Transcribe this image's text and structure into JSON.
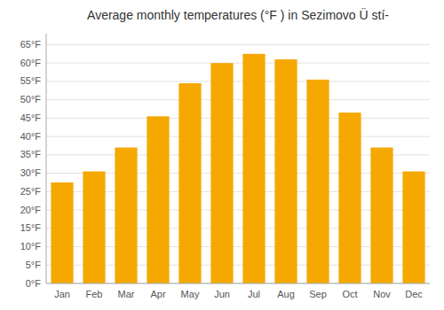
{
  "chart_data": {
    "type": "bar",
    "title": "Average monthly temperatures (°F ) in Sezimovo Ü stí-",
    "categories": [
      "Jan",
      "Feb",
      "Mar",
      "Apr",
      "May",
      "Jun",
      "Jul",
      "Aug",
      "Sep",
      "Oct",
      "Nov",
      "Dec"
    ],
    "values": [
      27.5,
      30.5,
      37.0,
      45.5,
      54.5,
      60.0,
      62.5,
      61.0,
      55.5,
      46.5,
      37.0,
      30.5
    ],
    "color": "#F5A800",
    "ylim": [
      0,
      68
    ],
    "yticks": [
      {
        "value": 0,
        "label": "0°F"
      },
      {
        "value": 5,
        "label": "5°F"
      },
      {
        "value": 10,
        "label": "10°F"
      },
      {
        "value": 15,
        "label": "15°F"
      },
      {
        "value": 20,
        "label": "20°F"
      },
      {
        "value": 25,
        "label": "25°F"
      },
      {
        "value": 30,
        "label": "30°F"
      },
      {
        "value": 35,
        "label": "35°F"
      },
      {
        "value": 40,
        "label": "40°F"
      },
      {
        "value": 45,
        "label": "45°F"
      },
      {
        "value": 50,
        "label": "50°F"
      },
      {
        "value": 55,
        "label": "55°F"
      },
      {
        "value": 60,
        "label": "60°F"
      },
      {
        "value": 65,
        "label": "65°F"
      }
    ],
    "grid": true
  }
}
